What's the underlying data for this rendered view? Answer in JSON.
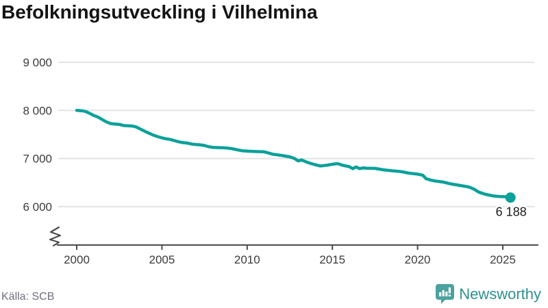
{
  "title": "Befolkningsutveckling i Vilhelmina",
  "source": "Källa: SCB",
  "branding": {
    "logo_text": "Newsworthy",
    "logo_icon": "newsworthy-chart-bubble-icon",
    "logo_text_color": "#2e908d",
    "logo_icon_color": "#4ca29f"
  },
  "colors": {
    "line": "#0aa19a",
    "grid": "#e3e3e3",
    "axis": "#4b4b4b",
    "tick_text": "#3b3b3b",
    "end_label_text": "#1a1a1a"
  },
  "chart_data": {
    "type": "line",
    "title": "Befolkningsutveckling i Vilhelmina",
    "xlabel": "",
    "ylabel": "",
    "grid": "horizontal",
    "legend": "none",
    "axis_break": true,
    "x_ticks": [
      2000,
      2005,
      2010,
      2015,
      2020,
      2025
    ],
    "x_tick_labels": [
      "2000",
      "2005",
      "2010",
      "2015",
      "2020",
      "2025"
    ],
    "y_ticks": [
      6000,
      7000,
      8000,
      9000
    ],
    "y_tick_labels": [
      "6 000",
      "7 000",
      "8 000",
      "9 000"
    ],
    "xlim": [
      1998.9,
      2027.1
    ],
    "ylim": [
      5800,
      9300
    ],
    "end_label": "6 188",
    "end_value": 6188,
    "series": [
      {
        "name": "Befolkning",
        "points": [
          [
            2000.0,
            8000
          ],
          [
            2000.25,
            7995
          ],
          [
            2000.5,
            7980
          ],
          [
            2000.75,
            7940
          ],
          [
            2001.0,
            7895
          ],
          [
            2001.25,
            7860
          ],
          [
            2001.5,
            7810
          ],
          [
            2001.75,
            7760
          ],
          [
            2002.0,
            7725
          ],
          [
            2002.25,
            7715
          ],
          [
            2002.5,
            7710
          ],
          [
            2002.75,
            7685
          ],
          [
            2003.0,
            7680
          ],
          [
            2003.25,
            7675
          ],
          [
            2003.5,
            7655
          ],
          [
            2003.75,
            7610
          ],
          [
            2004.0,
            7565
          ],
          [
            2004.25,
            7525
          ],
          [
            2004.5,
            7485
          ],
          [
            2004.75,
            7455
          ],
          [
            2005.0,
            7430
          ],
          [
            2005.25,
            7410
          ],
          [
            2005.5,
            7395
          ],
          [
            2005.75,
            7370
          ],
          [
            2006.0,
            7345
          ],
          [
            2006.25,
            7330
          ],
          [
            2006.5,
            7320
          ],
          [
            2006.75,
            7300
          ],
          [
            2007.0,
            7290
          ],
          [
            2007.25,
            7285
          ],
          [
            2007.5,
            7270
          ],
          [
            2007.75,
            7245
          ],
          [
            2008.0,
            7230
          ],
          [
            2008.25,
            7228
          ],
          [
            2008.5,
            7225
          ],
          [
            2008.75,
            7220
          ],
          [
            2009.0,
            7210
          ],
          [
            2009.25,
            7195
          ],
          [
            2009.5,
            7175
          ],
          [
            2009.75,
            7160
          ],
          [
            2010.0,
            7155
          ],
          [
            2010.25,
            7150
          ],
          [
            2010.5,
            7145
          ],
          [
            2010.75,
            7142
          ],
          [
            2011.0,
            7140
          ],
          [
            2011.25,
            7115
          ],
          [
            2011.5,
            7090
          ],
          [
            2011.75,
            7078
          ],
          [
            2012.0,
            7065
          ],
          [
            2012.25,
            7050
          ],
          [
            2012.5,
            7035
          ],
          [
            2012.75,
            7005
          ],
          [
            2013.0,
            6950
          ],
          [
            2013.2,
            6970
          ],
          [
            2013.5,
            6925
          ],
          [
            2013.75,
            6895
          ],
          [
            2014.0,
            6870
          ],
          [
            2014.3,
            6845
          ],
          [
            2014.7,
            6862
          ],
          [
            2015.0,
            6880
          ],
          [
            2015.3,
            6895
          ],
          [
            2015.6,
            6860
          ],
          [
            2016.0,
            6830
          ],
          [
            2016.2,
            6790
          ],
          [
            2016.4,
            6825
          ],
          [
            2016.6,
            6790
          ],
          [
            2016.8,
            6805
          ],
          [
            2017.0,
            6800
          ],
          [
            2017.5,
            6795
          ],
          [
            2018.0,
            6765
          ],
          [
            2018.5,
            6745
          ],
          [
            2019.0,
            6730
          ],
          [
            2019.5,
            6695
          ],
          [
            2020.0,
            6675
          ],
          [
            2020.3,
            6655
          ],
          [
            2020.5,
            6580
          ],
          [
            2020.75,
            6555
          ],
          [
            2021.0,
            6535
          ],
          [
            2021.5,
            6510
          ],
          [
            2022.0,
            6470
          ],
          [
            2022.5,
            6440
          ],
          [
            2023.0,
            6410
          ],
          [
            2023.3,
            6365
          ],
          [
            2023.6,
            6300
          ],
          [
            2024.0,
            6255
          ],
          [
            2024.4,
            6225
          ],
          [
            2024.8,
            6210
          ],
          [
            2025.2,
            6205
          ],
          [
            2025.45,
            6188
          ]
        ]
      }
    ]
  }
}
